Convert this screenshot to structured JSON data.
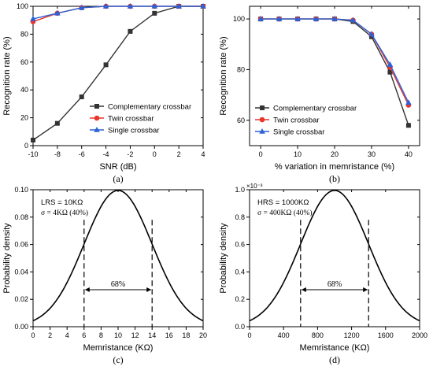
{
  "chart_data": [
    {
      "type": "line",
      "panel_label": "(a)",
      "xlabel": "SNR (dB)",
      "ylabel": "Recognition rate (%)",
      "xlim": [
        -10,
        4
      ],
      "ylim": [
        0,
        100
      ],
      "xticks": [
        -10,
        -8,
        -6,
        -4,
        -2,
        0,
        2,
        4
      ],
      "yticks": [
        0,
        20,
        40,
        60,
        80,
        100
      ],
      "legend_position": "lower-right",
      "x": [
        -10,
        -8,
        -6,
        -4,
        -2,
        0,
        2,
        4
      ],
      "series": [
        {
          "name": "Complementary crossbar",
          "color": "#333333",
          "marker": "square",
          "values": [
            4,
            16,
            35,
            58,
            82,
            95,
            100,
            100
          ]
        },
        {
          "name": "Twin crossbar",
          "color": "#e8352b",
          "marker": "circle",
          "values": [
            89,
            95,
            99,
            100,
            100,
            100,
            100,
            100
          ]
        },
        {
          "name": "Single crossbar",
          "color": "#2b62d6",
          "marker": "triangle",
          "values": [
            91,
            95,
            99,
            100,
            100,
            100,
            100,
            100
          ]
        }
      ]
    },
    {
      "type": "line",
      "panel_label": "(b)",
      "xlabel": "% variation in memristance (%)",
      "ylabel": "Recognition rate (%)",
      "xlim": [
        -3,
        43
      ],
      "ylim": [
        50,
        105
      ],
      "xticks": [
        0,
        10,
        20,
        30,
        40
      ],
      "yticks": [
        60,
        80,
        100
      ],
      "legend_position": "lower-left",
      "x": [
        0,
        5,
        10,
        15,
        20,
        25,
        30,
        35,
        40
      ],
      "series": [
        {
          "name": "Complementary crossbar",
          "color": "#333333",
          "marker": "square",
          "values": [
            100,
            100,
            100,
            100,
            100,
            99,
            93,
            79,
            58
          ]
        },
        {
          "name": "Twin crossbar",
          "color": "#e8352b",
          "marker": "circle",
          "values": [
            100,
            100,
            100,
            100,
            100,
            99.5,
            94,
            81,
            66
          ]
        },
        {
          "name": "Single crossbar",
          "color": "#2b62d6",
          "marker": "triangle",
          "values": [
            100,
            100,
            100,
            100,
            100,
            99.5,
            94,
            82,
            67
          ]
        }
      ]
    },
    {
      "type": "line",
      "panel_label": "(c)",
      "xlabel": "Memristance (KΩ)",
      "ylabel": "Probability density",
      "xlim": [
        0,
        20
      ],
      "ylim": [
        0,
        0.1
      ],
      "xticks": [
        "0",
        "2",
        "4",
        "6",
        "8",
        "10",
        "12",
        "14",
        "16",
        "18",
        "20"
      ],
      "yticks": [
        "0.00",
        "0.02",
        "0.04",
        "0.06",
        "0.08",
        "0.10"
      ],
      "distribution": {
        "kind": "gaussian",
        "mean": 10,
        "sigma": 4
      },
      "sigma_bounds": [
        6,
        14
      ],
      "interval_label": "68%",
      "annotation_lines": [
        "LRS = 10KΩ",
        "σ = 4KΩ (40%)"
      ],
      "exponent_label": ""
    },
    {
      "type": "line",
      "panel_label": "(d)",
      "xlabel": "Memristance (KΩ)",
      "ylabel": "Probability density",
      "xlim": [
        0,
        2000
      ],
      "ylim": [
        0,
        1
      ],
      "xticks": [
        "0",
        "400",
        "800",
        "1200",
        "1600",
        "2000"
      ],
      "yticks": [
        "0.0",
        "0.2",
        "0.4",
        "0.6",
        "0.8",
        "1.0"
      ],
      "distribution": {
        "kind": "gaussian",
        "mean": 1000,
        "sigma": 400
      },
      "sigma_bounds": [
        600,
        1400
      ],
      "interval_label": "68%",
      "annotation_lines": [
        "HRS = 1000KΩ",
        "σ = 400KΩ (40%)"
      ],
      "exponent_label": "×10⁻³"
    }
  ]
}
